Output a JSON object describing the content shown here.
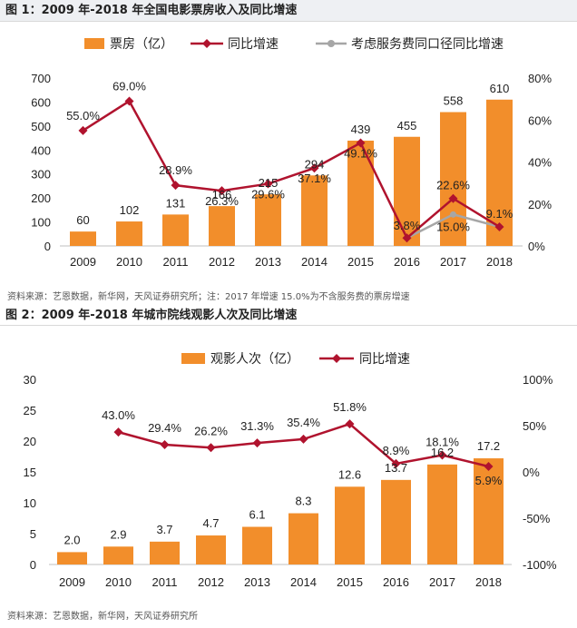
{
  "figure1": {
    "title": "图 1：2009 年-2018 年全国电影票房收入及同比增速",
    "source": "资料来源：艺恩数据，新华网，天风证券研究所；注：2017 年增速 15.0%为不含服务费的票房增速",
    "legend": [
      "票房（亿）",
      "同比增速",
      "考虑服务费同口径同比增速"
    ],
    "colors": {
      "bar": "#f28e2b",
      "line": "#b0132e",
      "line2": "#a6a6a6"
    }
  },
  "figure2": {
    "title": "图 2：2009 年-2018 年城市院线观影人次及同比增速",
    "source": "资料来源：艺恩数据，新华网，天风证券研究所",
    "legend": [
      "观影人次（亿）",
      "同比增速"
    ],
    "colors": {
      "bar": "#f28e2b",
      "line": "#b0132e"
    }
  },
  "chart_data": [
    {
      "type": "bar",
      "categories": [
        "2009",
        "2010",
        "2011",
        "2012",
        "2013",
        "2014",
        "2015",
        "2016",
        "2017",
        "2018"
      ],
      "series": [
        {
          "name": "票房（亿）",
          "type": "bar",
          "axis": "left",
          "values": [
            60,
            102,
            131,
            166,
            215,
            294,
            439,
            455,
            558,
            610
          ],
          "labels": [
            "60",
            "102",
            "131",
            "166",
            "215",
            "294",
            "439",
            "455",
            "558",
            "610"
          ]
        },
        {
          "name": "同比增速",
          "type": "line",
          "axis": "right",
          "values": [
            55.0,
            69.0,
            28.9,
            26.3,
            29.6,
            37.1,
            49.1,
            3.8,
            22.6,
            9.1
          ],
          "labels": [
            "55.0%",
            "69.0%",
            "28.9%",
            "26.3%",
            "29.6%",
            "37.1%",
            "49.1%",
            "3.8%",
            "22.6%",
            "9.1%"
          ]
        },
        {
          "name": "考虑服务费同口径同比增速",
          "type": "line",
          "axis": "right",
          "x": [
            "2016",
            "2017",
            "2018"
          ],
          "values": [
            3.8,
            15.0,
            9.1
          ],
          "labels": [
            "",
            "15.0%",
            ""
          ]
        }
      ],
      "ylim_left": [
        0,
        700
      ],
      "yticks_left": [
        "0",
        "100",
        "200",
        "300",
        "400",
        "500",
        "600",
        "700"
      ],
      "ylim_right": [
        0,
        80
      ],
      "yticks_right": [
        "0%",
        "20%",
        "40%",
        "60%",
        "80%"
      ],
      "legend_position": "top"
    },
    {
      "type": "bar",
      "categories": [
        "2009",
        "2010",
        "2011",
        "2012",
        "2013",
        "2014",
        "2015",
        "2016",
        "2017",
        "2018"
      ],
      "series": [
        {
          "name": "观影人次（亿）",
          "type": "bar",
          "axis": "left",
          "values": [
            2.0,
            2.9,
            3.7,
            4.7,
            6.1,
            8.3,
            12.6,
            13.7,
            16.2,
            17.2
          ],
          "labels": [
            "2.0",
            "2.9",
            "3.7",
            "4.7",
            "6.1",
            "8.3",
            "12.6",
            "13.7",
            "16.2",
            "17.2"
          ]
        },
        {
          "name": "同比增速",
          "type": "line",
          "axis": "right",
          "x": [
            "2010",
            "2011",
            "2012",
            "2013",
            "2014",
            "2015",
            "2016",
            "2017",
            "2018"
          ],
          "values": [
            43.0,
            29.4,
            26.2,
            31.3,
            35.4,
            51.8,
            8.9,
            18.1,
            5.9
          ],
          "labels": [
            "43.0%",
            "29.4%",
            "26.2%",
            "31.3%",
            "35.4%",
            "51.8%",
            "8.9%",
            "18.1%",
            "5.9%"
          ]
        }
      ],
      "ylim_left": [
        0,
        30
      ],
      "yticks_left": [
        "0",
        "5",
        "10",
        "15",
        "20",
        "25",
        "30"
      ],
      "ylim_right": [
        -100,
        100
      ],
      "yticks_right": [
        "-100%",
        "-50%",
        "0%",
        "50%",
        "100%"
      ],
      "legend_position": "top"
    }
  ]
}
